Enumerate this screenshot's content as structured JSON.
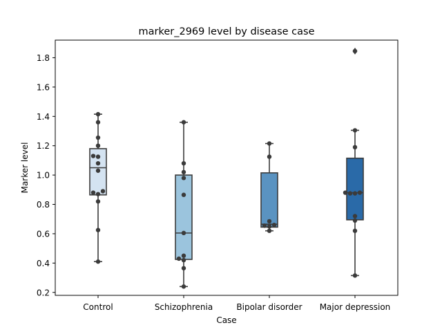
{
  "chart_data": {
    "type": "box",
    "title": "marker_2969 level by disease case",
    "xlabel": "Case",
    "ylabel": "Marker level",
    "ylim": [
      0.18,
      1.92
    ],
    "yticks": [
      0.2,
      0.4,
      0.6,
      0.8,
      1.0,
      1.2,
      1.4,
      1.6,
      1.8
    ],
    "ytick_labels": [
      "0.2",
      "0.4",
      "0.6",
      "0.8",
      "1.0",
      "1.2",
      "1.4",
      "1.6",
      "1.8"
    ],
    "grid": false,
    "legend": "none",
    "categories": [
      "Control",
      "Schizophrenia",
      "Bipolar disorder",
      "Major depression"
    ],
    "colors": [
      "#d4e3f1",
      "#9bc4dd",
      "#5a93c1",
      "#2a6aa8"
    ],
    "edge_color": "#3b3b3b",
    "point_color": "#3b3b3b",
    "boxes": [
      {
        "q1": 0.865,
        "median": 1.05,
        "q3": 1.18,
        "whisker_low": 0.41,
        "whisker_high": 1.415,
        "outliers": []
      },
      {
        "q1": 0.425,
        "median": 0.605,
        "q3": 1.0,
        "whisker_low": 0.24,
        "whisker_high": 1.36,
        "outliers": []
      },
      {
        "q1": 0.645,
        "median": 0.665,
        "q3": 1.015,
        "whisker_low": 0.62,
        "whisker_high": 1.215,
        "outliers": []
      },
      {
        "q1": 0.695,
        "median": 0.88,
        "q3": 1.115,
        "whisker_low": 0.315,
        "whisker_high": 1.305,
        "outliers": [
          1.845
        ]
      }
    ],
    "points": [
      [
        0.41,
        0.625,
        0.82,
        0.87,
        0.88,
        0.89,
        1.03,
        1.08,
        1.125,
        1.13,
        1.2,
        1.255,
        1.36,
        1.415
      ],
      [
        0.24,
        0.365,
        0.42,
        0.43,
        0.45,
        0.605,
        0.865,
        0.98,
        1.02,
        1.08,
        1.36
      ],
      [
        0.62,
        0.65,
        0.655,
        0.66,
        0.685,
        1.125,
        1.215
      ],
      [
        0.315,
        0.62,
        0.69,
        0.72,
        0.875,
        0.875,
        0.88,
        0.88,
        1.19,
        1.305,
        1.845
      ]
    ]
  }
}
